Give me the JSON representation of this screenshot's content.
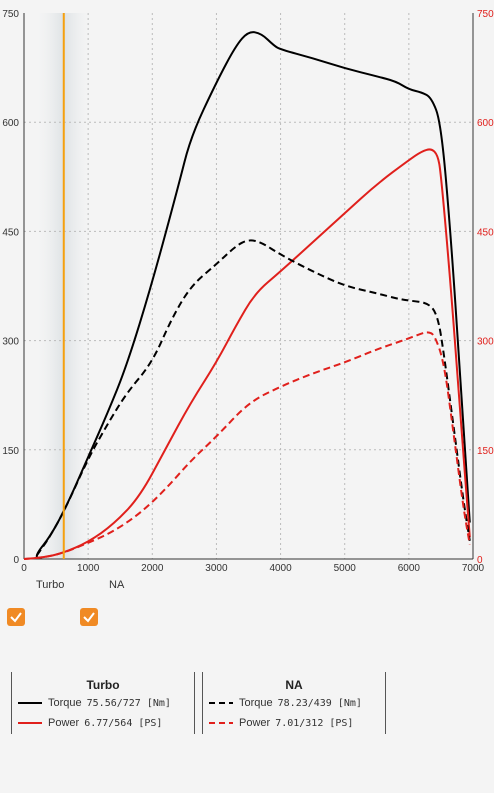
{
  "chart_data": {
    "type": "line",
    "xlim": [
      0,
      7000
    ],
    "ylim_left": [
      0,
      750
    ],
    "ylim_right": [
      0,
      750
    ],
    "x_ticks": [
      "0",
      "1000",
      "2000",
      "3000",
      "4000",
      "5000",
      "6000",
      "7000"
    ],
    "y_ticks_left": [
      "0",
      "150",
      "300",
      "450",
      "600",
      "750"
    ],
    "y_ticks_right": [
      "0",
      "150",
      "300",
      "450",
      "600",
      "750"
    ],
    "grid": true,
    "marker_rpm": 620,
    "series": [
      {
        "name": "Torque",
        "group": "Turbo",
        "color": "#000000",
        "dash": false,
        "axis": "left",
        "points": [
          [
            200,
            0
          ],
          [
            200,
            8
          ],
          [
            400,
            30
          ],
          [
            650,
            70
          ],
          [
            1000,
            140
          ],
          [
            1300,
            200
          ],
          [
            1600,
            265
          ],
          [
            2000,
            380
          ],
          [
            2400,
            510
          ],
          [
            2600,
            580
          ],
          [
            3000,
            655
          ],
          [
            3300,
            705
          ],
          [
            3500,
            725
          ],
          [
            3700,
            722
          ],
          [
            3900,
            705
          ],
          [
            4000,
            700
          ],
          [
            4500,
            688
          ],
          [
            5000,
            674
          ],
          [
            5500,
            663
          ],
          [
            5800,
            656
          ],
          [
            6000,
            645
          ],
          [
            6200,
            641
          ],
          [
            6350,
            634
          ],
          [
            6500,
            600
          ],
          [
            6650,
            450
          ],
          [
            6800,
            250
          ],
          [
            6950,
            50
          ]
        ]
      },
      {
        "name": "Power",
        "group": "Turbo",
        "color": "#e0201c",
        "dash": false,
        "axis": "right",
        "points": [
          [
            0,
            0
          ],
          [
            300,
            2
          ],
          [
            600,
            8
          ],
          [
            1000,
            23
          ],
          [
            1400,
            48
          ],
          [
            1800,
            85
          ],
          [
            2200,
            150
          ],
          [
            2600,
            215
          ],
          [
            3000,
            270
          ],
          [
            3300,
            320
          ],
          [
            3600,
            365
          ],
          [
            4000,
            395
          ],
          [
            4500,
            435
          ],
          [
            5000,
            475
          ],
          [
            5500,
            515
          ],
          [
            6000,
            548
          ],
          [
            6200,
            560
          ],
          [
            6350,
            564
          ],
          [
            6450,
            555
          ],
          [
            6500,
            530
          ],
          [
            6650,
            380
          ],
          [
            6800,
            200
          ],
          [
            6950,
            30
          ]
        ]
      },
      {
        "name": "Torque",
        "group": "NA",
        "color": "#000000",
        "dash": true,
        "axis": "left",
        "points": [
          [
            200,
            5
          ],
          [
            400,
            30
          ],
          [
            650,
            70
          ],
          [
            1000,
            138
          ],
          [
            1300,
            185
          ],
          [
            1600,
            228
          ],
          [
            2000,
            270
          ],
          [
            2300,
            330
          ],
          [
            2600,
            375
          ],
          [
            3000,
            405
          ],
          [
            3300,
            430
          ],
          [
            3500,
            439
          ],
          [
            3700,
            435
          ],
          [
            4000,
            418
          ],
          [
            4500,
            395
          ],
          [
            5000,
            375
          ],
          [
            5500,
            365
          ],
          [
            5800,
            358
          ],
          [
            6000,
            355
          ],
          [
            6300,
            352
          ],
          [
            6450,
            335
          ],
          [
            6550,
            280
          ],
          [
            6700,
            180
          ],
          [
            6850,
            80
          ],
          [
            6950,
            25
          ]
        ]
      },
      {
        "name": "Power",
        "group": "NA",
        "color": "#e0201c",
        "dash": true,
        "axis": "right",
        "points": [
          [
            0,
            0
          ],
          [
            300,
            2
          ],
          [
            600,
            8
          ],
          [
            1000,
            22
          ],
          [
            1400,
            38
          ],
          [
            1800,
            62
          ],
          [
            2200,
            95
          ],
          [
            2600,
            135
          ],
          [
            3000,
            168
          ],
          [
            3500,
            215
          ],
          [
            4000,
            237
          ],
          [
            4500,
            255
          ],
          [
            5000,
            270
          ],
          [
            5500,
            288
          ],
          [
            6000,
            303
          ],
          [
            6200,
            310
          ],
          [
            6300,
            312
          ],
          [
            6400,
            308
          ],
          [
            6550,
            270
          ],
          [
            6700,
            170
          ],
          [
            6850,
            70
          ],
          [
            6950,
            20
          ]
        ]
      }
    ]
  },
  "toggles": [
    {
      "label": "Turbo",
      "checked": true
    },
    {
      "label": "NA",
      "checked": true
    }
  ],
  "legend": {
    "turbo": {
      "title": "Turbo",
      "torque": {
        "label": "Torque",
        "value": "75.56/727",
        "unit": "[Nm]"
      },
      "power": {
        "label": "Power",
        "value": "6.77/564",
        "unit": "[PS]"
      }
    },
    "na": {
      "title": "NA",
      "torque": {
        "label": "Torque",
        "value": "78.23/439",
        "unit": "[Nm]"
      },
      "power": {
        "label": "Power",
        "value": "7.01/312",
        "unit": "[PS]"
      }
    }
  }
}
